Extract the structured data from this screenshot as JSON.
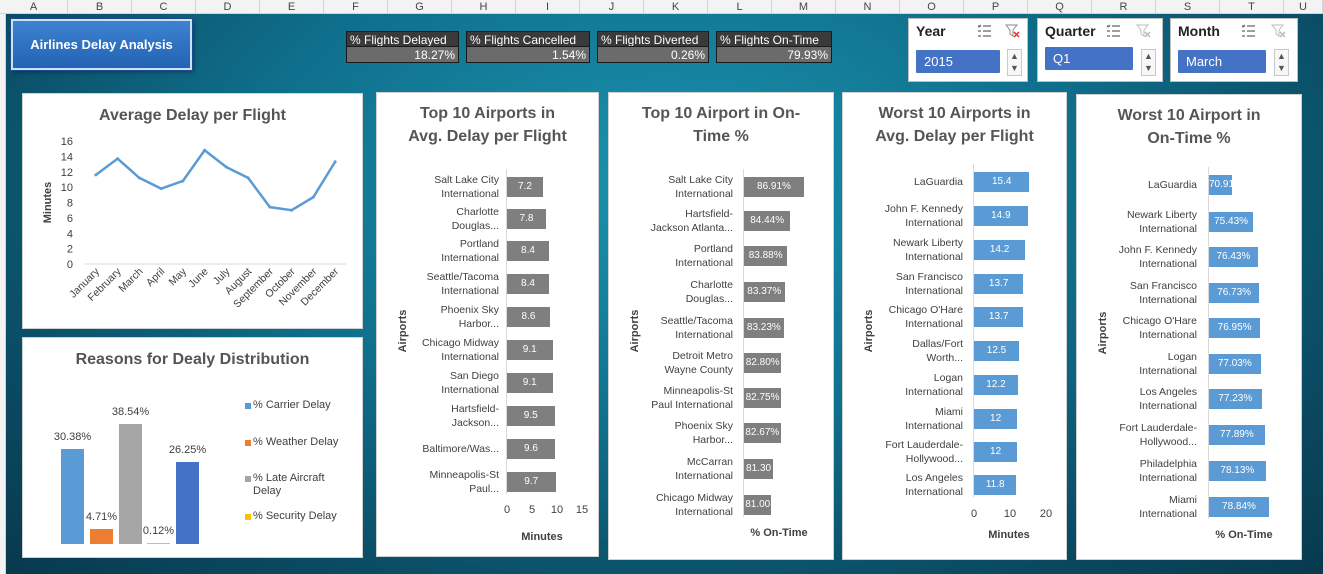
{
  "columns": [
    "A",
    "B",
    "C",
    "D",
    "E",
    "F",
    "G",
    "H",
    "I",
    "J",
    "K",
    "L",
    "M",
    "N",
    "O",
    "P",
    "Q",
    "R",
    "S",
    "T",
    "U"
  ],
  "title": "Airlines Delay Analysis",
  "kpis": [
    {
      "label": "% Flights Delayed",
      "value": "18.27%"
    },
    {
      "label": "% Flights Cancelled",
      "value": "1.54%"
    },
    {
      "label": "% Flights Diverted",
      "value": "0.26%"
    },
    {
      "label": "% Flights On-Time",
      "value": "79.93%"
    }
  ],
  "slicers": {
    "year": {
      "title": "Year",
      "selected": "2015"
    },
    "quarter": {
      "title": "Quarter",
      "selected": "Q1"
    },
    "month": {
      "title": "Month",
      "selected": "March"
    }
  },
  "colors": {
    "line": "#5b9bd5",
    "bar_gray": "#7f7f7f",
    "bar_blue": "#5b9bd5",
    "carrier": "#5b9bd5",
    "weather": "#ed7d31",
    "late_aircraft": "#a5a5a5",
    "security": "#ffc000",
    "nas": "#4472c4"
  },
  "chart_data": [
    {
      "id": "avg_delay",
      "type": "line",
      "title": "Average Delay per Flight",
      "ylabel": "Minutes",
      "xlabel": "",
      "ylim": [
        0,
        16
      ],
      "yticks": [
        "0",
        "2",
        "4",
        "6",
        "8",
        "10",
        "12",
        "14",
        "16"
      ],
      "categories": [
        "January",
        "February",
        "March",
        "April",
        "May",
        "June",
        "July",
        "August",
        "September",
        "October",
        "November",
        "December"
      ],
      "values": [
        11.6,
        13.7,
        11.2,
        9.8,
        10.8,
        14.8,
        12.6,
        11.2,
        7.4,
        7.0,
        8.7,
        13.3
      ]
    },
    {
      "id": "reasons",
      "type": "bar",
      "title": "Reasons for Dealy Distribution",
      "series": [
        {
          "name": "% Carrier Delay",
          "value": 30.38,
          "label": "30.38%"
        },
        {
          "name": "% Weather Delay",
          "value": 4.71,
          "label": "4.71%"
        },
        {
          "name": "% Late Aircraft Delay",
          "value": 38.54,
          "label": "38.54%"
        },
        {
          "name": "% Security Delay",
          "value": 0.12,
          "label": "0.12%"
        },
        {
          "name": "",
          "value": 26.25,
          "label": "26.25%"
        }
      ],
      "legend": [
        "% Carrier Delay",
        "% Weather Delay",
        "% Late Aircraft\nDelay",
        "% Security Delay"
      ]
    },
    {
      "id": "top_delay",
      "type": "bar",
      "orientation": "horizontal",
      "title": "Top 10 Airports in\nAvg. Delay per Flight",
      "ylabel": "Airports",
      "xlabel": "Minutes",
      "xlim": [
        0,
        15
      ],
      "xticks": [
        "0",
        "5",
        "10",
        "15"
      ],
      "categories": [
        "Salt Lake City\nInternational",
        "Charlotte\nDouglas...",
        "Portland\nInternational",
        "Seattle/Tacoma\nInternational",
        "Phoenix Sky\nHarbor...",
        "Chicago Midway\nInternational",
        "San Diego\nInternational",
        "Hartsfield-\nJackson...",
        "Baltimore/Was...",
        "Minneapolis-St\nPaul..."
      ],
      "values": [
        7.2,
        7.8,
        8.4,
        8.4,
        8.6,
        9.1,
        9.1,
        9.5,
        9.6,
        9.7
      ],
      "labels": [
        "7.2",
        "7.8",
        "8.4",
        "8.4",
        "8.6",
        "9.1",
        "9.1",
        "9.5",
        "9.6",
        "9.7"
      ]
    },
    {
      "id": "top_ontime",
      "type": "bar",
      "orientation": "horizontal",
      "title": "Top 10 Airport in On-\nTime %",
      "ylabel": "Airports",
      "xlabel": "% On-Time",
      "categories": [
        "Salt Lake City\nInternational",
        "Hartsfield-\nJackson Atlanta...",
        "Portland\nInternational",
        "Charlotte\nDouglas...",
        "Seattle/Tacoma\nInternational",
        "Detroit Metro\nWayne County",
        "Minneapolis-St\nPaul International",
        "Phoenix Sky\nHarbor...",
        "McCarran\nInternational",
        "Chicago Midway\nInternational"
      ],
      "values": [
        86.91,
        84.44,
        83.88,
        83.37,
        83.23,
        82.8,
        82.75,
        82.67,
        81.3,
        81.0
      ],
      "labels": [
        "86.91%",
        "84.44%",
        "83.88%",
        "83.37%",
        "83.23%",
        "82.80%",
        "82.75%",
        "82.67%",
        "81.30",
        "81.00"
      ]
    },
    {
      "id": "worst_delay",
      "type": "bar",
      "orientation": "horizontal",
      "title": "Worst 10 Airports in\nAvg. Delay per Flight",
      "ylabel": "Airports",
      "xlabel": "Minutes",
      "xlim": [
        0,
        20
      ],
      "xticks": [
        "0",
        "10",
        "20"
      ],
      "categories": [
        "LaGuardia",
        "John F. Kennedy\nInternational",
        "Newark Liberty\nInternational",
        "San Francisco\nInternational",
        "Chicago O'Hare\nInternational",
        "Dallas/Fort\nWorth...",
        "Logan\nInternational",
        "Miami\nInternational",
        "Fort Lauderdale-\nHollywood...",
        "Los Angeles\nInternational"
      ],
      "values": [
        15.4,
        14.9,
        14.2,
        13.7,
        13.7,
        12.5,
        12.2,
        12,
        12,
        11.8
      ],
      "labels": [
        "15.4",
        "14.9",
        "14.2",
        "13.7",
        "13.7",
        "12.5",
        "12.2",
        "12",
        "12",
        "11.8"
      ]
    },
    {
      "id": "worst_ontime",
      "type": "bar",
      "orientation": "horizontal",
      "title": "Worst 10 Airport in\nOn-Time %",
      "ylabel": "Airports",
      "xlabel": "% On-Time",
      "categories": [
        "LaGuardia",
        "Newark Liberty\nInternational",
        "John F. Kennedy\nInternational",
        "San Francisco\nInternational",
        "Chicago O'Hare\nInternational",
        "Logan\nInternational",
        "Los Angeles\nInternational",
        "Fort Lauderdale-\nHollywood...",
        "Philadelphia\nInternational",
        "Miami\nInternational"
      ],
      "values": [
        70.91,
        75.43,
        76.43,
        76.73,
        76.95,
        77.03,
        77.23,
        77.89,
        78.13,
        78.84
      ],
      "labels": [
        "70.91",
        "75.43%",
        "76.43%",
        "76.73%",
        "76.95%",
        "77.03%",
        "77.23%",
        "77.89%",
        "78.13%",
        "78.84%"
      ]
    }
  ]
}
